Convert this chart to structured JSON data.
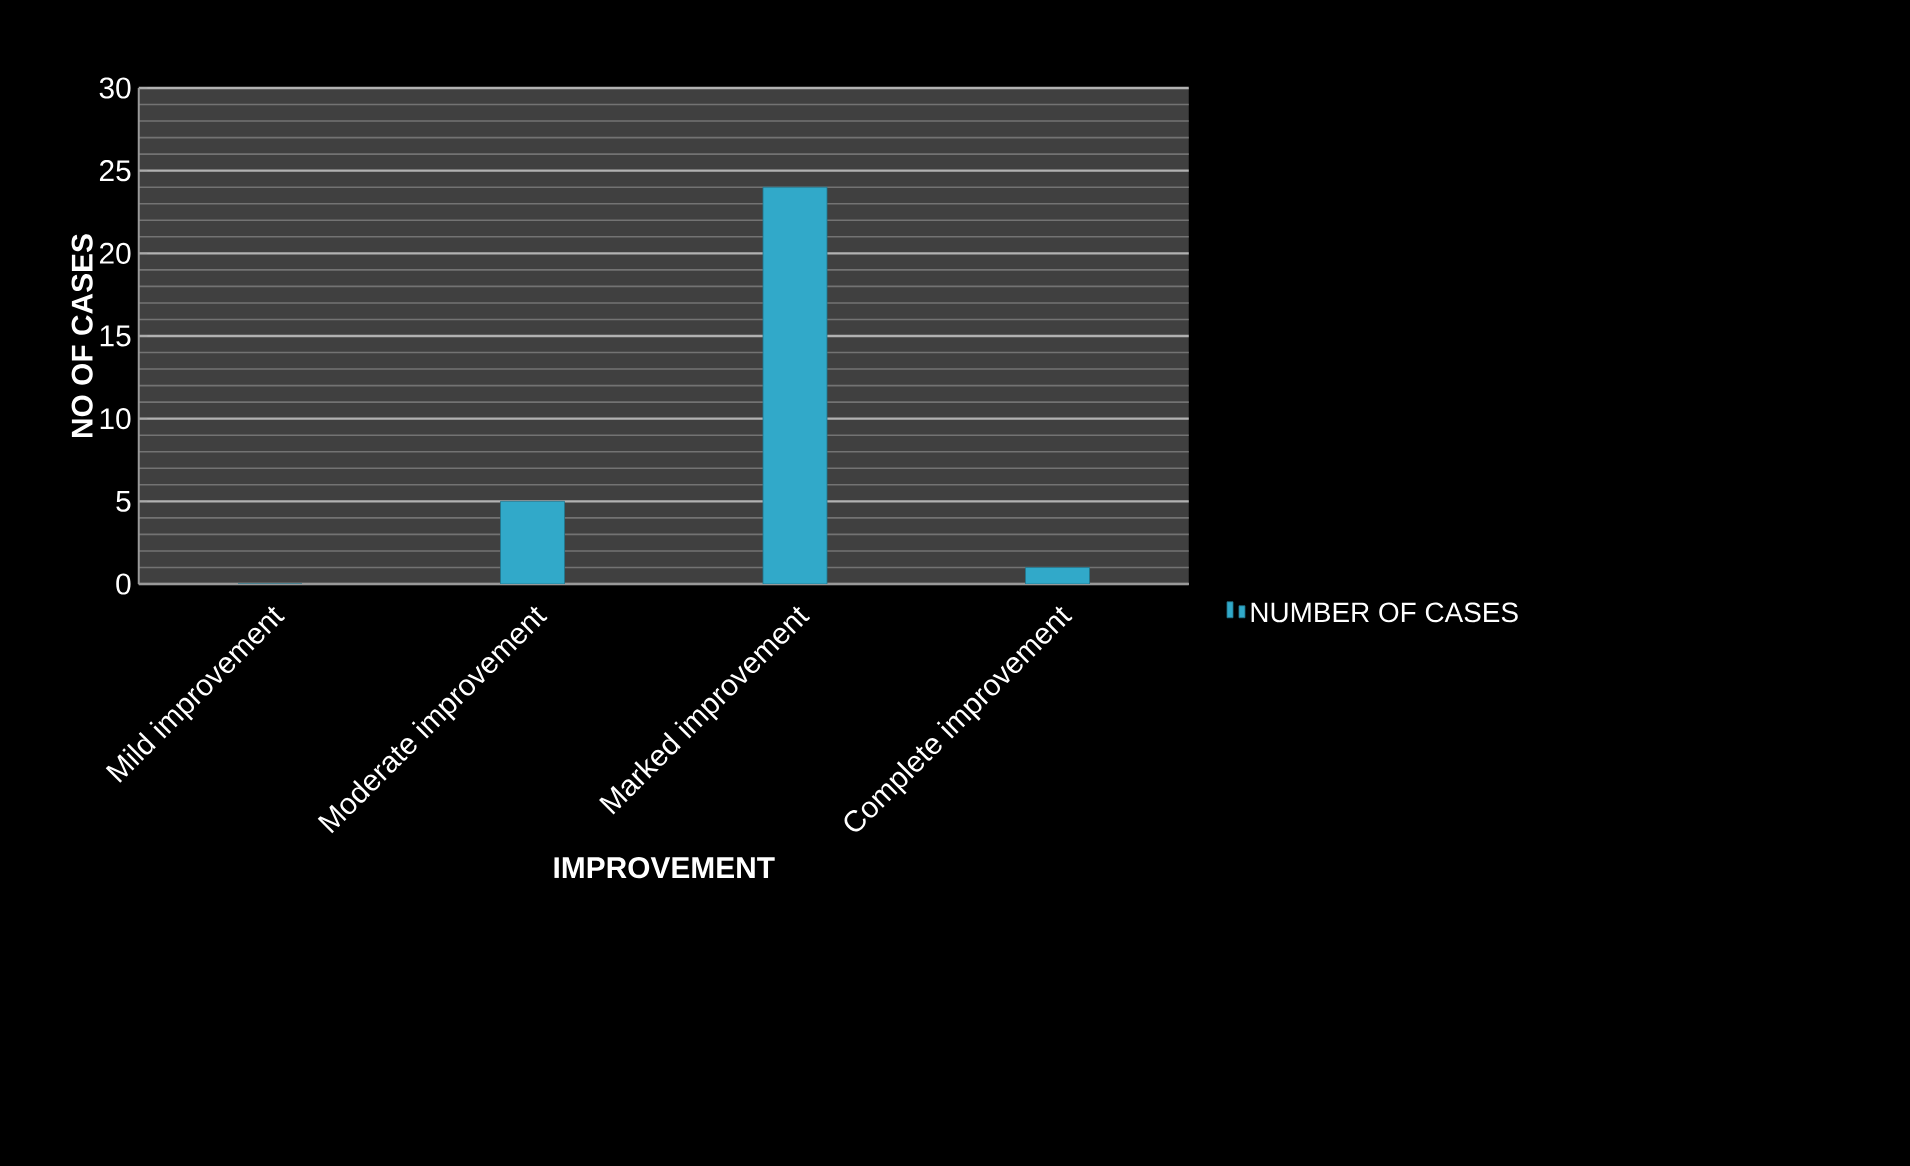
{
  "chart_data": {
    "type": "bar",
    "xlabel": "IMPROVEMENT",
    "ylabel": "NO OF CASES",
    "categories": [
      "Mild improvement",
      "Moderate improvement",
      "Marked improvement",
      "Complete improvement"
    ],
    "series": [
      {
        "name": "NUMBER OF CASES",
        "color": "#31a9c9",
        "values": [
          0,
          5,
          24,
          1
        ]
      }
    ],
    "ylim": [
      0,
      30
    ],
    "yticks": [
      0,
      5,
      10,
      15,
      20,
      25,
      30
    ],
    "grid": "y",
    "legend": "right"
  }
}
